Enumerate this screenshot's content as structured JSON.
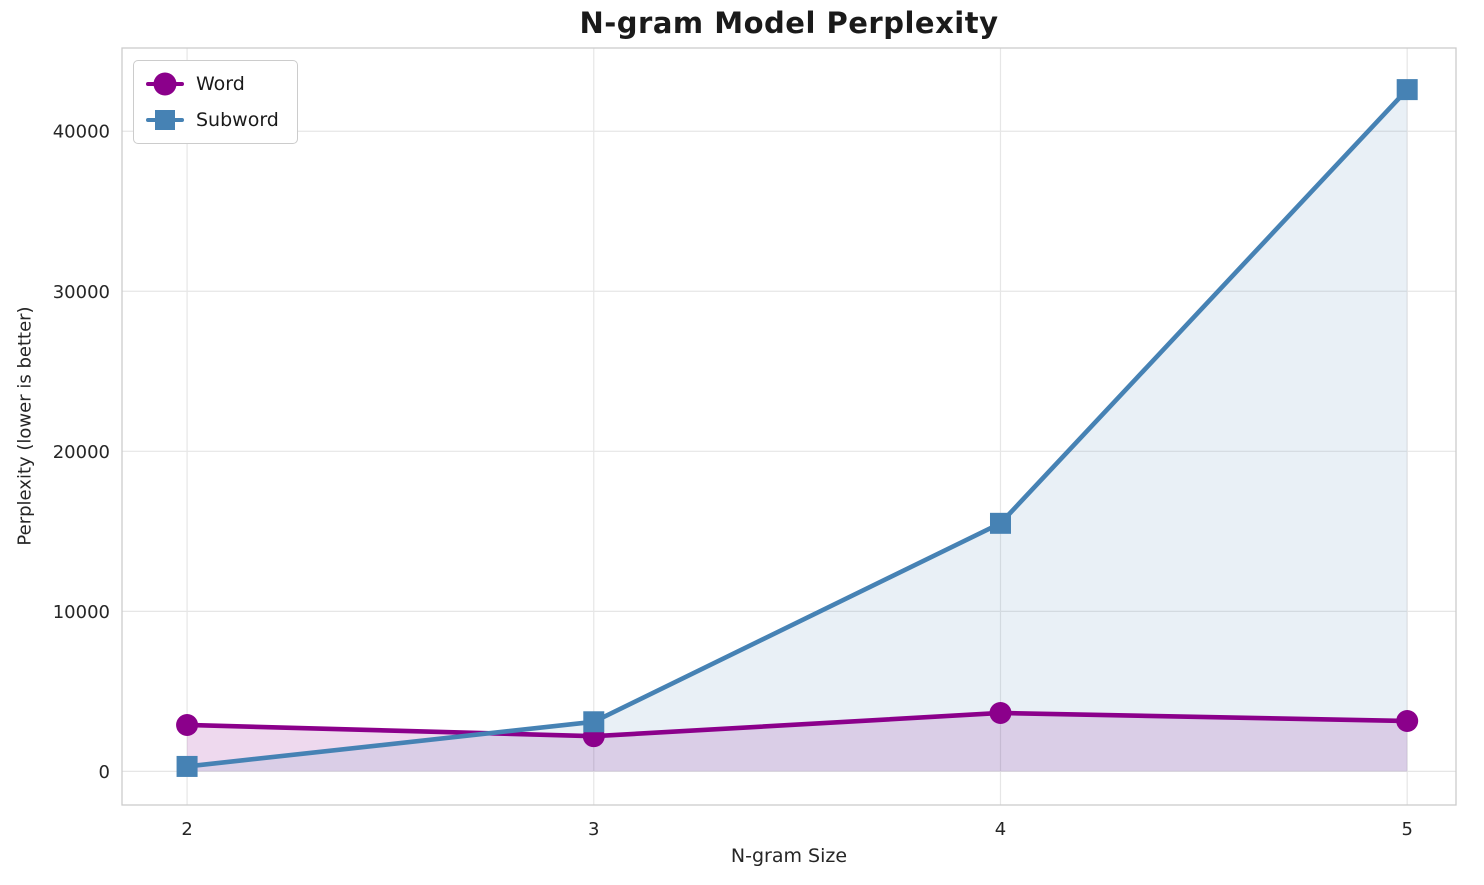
{
  "chart_data": {
    "type": "line",
    "title": "N-gram Model Perplexity",
    "xlabel": "N-gram Size",
    "ylabel": "Perplexity (lower is better)",
    "x": [
      2,
      3,
      4,
      5
    ],
    "xtick_labels": [
      "2",
      "3",
      "4",
      "5"
    ],
    "yticks": [
      0,
      10000,
      20000,
      30000,
      40000
    ],
    "ytick_labels": [
      "0",
      "10000",
      "20000",
      "30000",
      "40000"
    ],
    "xlim": [
      1.84,
      5.12
    ],
    "ylim": [
      -2100,
      45200
    ],
    "grid": true,
    "legend_position": "upper left",
    "series": [
      {
        "name": "Word",
        "marker": "circle",
        "color": "#8B008B",
        "fill_opacity": 0.15,
        "values": [
          2900,
          2200,
          3650,
          3150
        ]
      },
      {
        "name": "Subword",
        "marker": "square",
        "color": "#4682B4",
        "fill_opacity": 0.12,
        "values": [
          310,
          3100,
          15500,
          42600
        ]
      }
    ],
    "colors": {
      "background": "#ffffff",
      "grid": "#e6e6e6",
      "spine": "#cccccc",
      "tick_text": "#262626",
      "title_text": "#1a1a1a"
    }
  }
}
